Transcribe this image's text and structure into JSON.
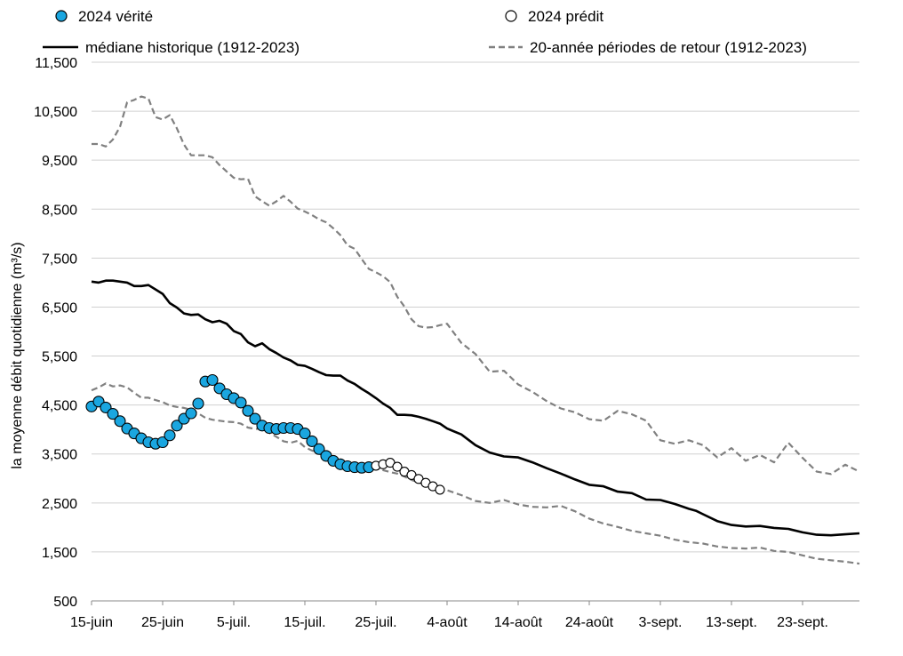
{
  "chart_data": {
    "type": "line",
    "title": "",
    "xlabel": "",
    "ylabel": "la moyenne débit quotidienne (m³/s)",
    "ylim": [
      500,
      11500
    ],
    "yticks": [
      500,
      1500,
      2500,
      3500,
      4500,
      5500,
      6500,
      7500,
      8500,
      9500,
      10500,
      11500
    ],
    "ytick_labels": [
      "500",
      "1,500",
      "2,500",
      "3,500",
      "4,500",
      "5,500",
      "6,500",
      "7,500",
      "8,500",
      "9,500",
      "10,500",
      "11,500"
    ],
    "xlim": [
      0,
      108
    ],
    "xticks": [
      {
        "day": 0,
        "label": "15-juin"
      },
      {
        "day": 10,
        "label": "25-juin"
      },
      {
        "day": 20,
        "label": "5-juil."
      },
      {
        "day": 30,
        "label": "15-juil."
      },
      {
        "day": 40,
        "label": "25-juil."
      },
      {
        "day": 50,
        "label": "4-août"
      },
      {
        "day": 60,
        "label": "14-août"
      },
      {
        "day": 70,
        "label": "24-août"
      },
      {
        "day": 80,
        "label": "3-sept."
      },
      {
        "day": 90,
        "label": "13-sept."
      },
      {
        "day": 100,
        "label": "23-sept."
      }
    ],
    "legend": {
      "actual": "2024 vérité",
      "predicted": "2024 prédit",
      "median": "médiane historique (1912-2023)",
      "return_period": "20-année périodes de retour (1912-2023)"
    },
    "series": [
      {
        "name": "2024 vérité",
        "style": "markers-filled",
        "color": "#1aa6e0",
        "x_start": 0,
        "values": [
          4470,
          4570,
          4450,
          4320,
          4170,
          4020,
          3920,
          3820,
          3740,
          3710,
          3740,
          3880,
          4080,
          4220,
          4330,
          4530,
          4980,
          5010,
          4840,
          4720,
          4640,
          4550,
          4380,
          4220,
          4080,
          4030,
          4010,
          4030,
          4030,
          4010,
          3920,
          3760,
          3600,
          3460,
          3360,
          3290,
          3250,
          3230,
          3220,
          3230
        ]
      },
      {
        "name": "2024 prédit",
        "style": "markers-open",
        "color": "#ffffff",
        "x_start": 40,
        "values": [
          3260,
          3290,
          3320,
          3240,
          3140,
          3070,
          2990,
          2910,
          2840,
          2770
        ]
      },
      {
        "name": "médiane historique (1912-2023)",
        "style": "solid",
        "color": "#000000",
        "x": [
          0,
          1,
          2,
          3,
          4,
          5,
          6,
          7,
          8,
          9,
          10,
          11,
          12,
          13,
          14,
          15,
          16,
          17,
          18,
          19,
          20,
          21,
          22,
          23,
          24,
          25,
          26,
          27,
          28,
          29,
          30,
          31,
          32,
          33,
          34,
          35,
          36,
          37,
          38,
          39,
          40,
          41,
          42,
          43,
          44,
          45,
          46,
          47,
          48,
          49,
          50,
          52,
          54,
          56,
          58,
          60,
          62,
          64,
          66,
          68,
          70,
          72,
          74,
          76,
          78,
          80,
          82,
          84,
          85,
          86,
          88,
          90,
          92,
          94,
          96,
          98,
          100,
          102,
          104,
          106,
          108
        ],
        "values": [
          7020,
          7000,
          7040,
          7040,
          7020,
          7000,
          6930,
          6930,
          6950,
          6860,
          6770,
          6580,
          6490,
          6370,
          6340,
          6350,
          6250,
          6190,
          6220,
          6160,
          6010,
          5950,
          5780,
          5700,
          5760,
          5640,
          5560,
          5470,
          5410,
          5320,
          5300,
          5240,
          5170,
          5110,
          5100,
          5100,
          5000,
          4930,
          4830,
          4740,
          4640,
          4530,
          4440,
          4300,
          4300,
          4290,
          4260,
          4220,
          4170,
          4120,
          4020,
          3900,
          3680,
          3530,
          3450,
          3430,
          3330,
          3210,
          3100,
          2980,
          2870,
          2840,
          2730,
          2700,
          2570,
          2560,
          2480,
          2380,
          2340,
          2270,
          2130,
          2050,
          2020,
          2030,
          1990,
          1970,
          1900,
          1850,
          1840,
          1860,
          1880
        ]
      },
      {
        "name": "20-année périodes de retour (1912-2023) haut",
        "style": "dashed",
        "color": "#808080",
        "x": [
          0,
          1,
          2,
          3,
          4,
          5,
          6,
          7,
          8,
          9,
          10,
          11,
          12,
          13,
          14,
          15,
          16,
          17,
          18,
          19,
          20,
          21,
          22,
          23,
          24,
          25,
          26,
          27,
          28,
          29,
          30,
          31,
          32,
          33,
          34,
          35,
          36,
          37,
          38,
          39,
          40,
          41,
          42,
          43,
          44,
          45,
          46,
          47,
          48,
          49,
          50,
          52,
          54,
          56,
          58,
          60,
          62,
          64,
          66,
          68,
          70,
          72,
          74,
          76,
          78,
          80,
          82,
          84,
          86,
          88,
          90,
          92,
          94,
          96,
          98,
          100,
          102,
          104,
          106,
          108
        ],
        "values": [
          9830,
          9830,
          9780,
          9920,
          10180,
          10680,
          10730,
          10800,
          10760,
          10380,
          10330,
          10420,
          10150,
          9820,
          9600,
          9600,
          9600,
          9560,
          9400,
          9270,
          9140,
          9110,
          9120,
          8760,
          8660,
          8570,
          8660,
          8770,
          8650,
          8510,
          8450,
          8380,
          8290,
          8230,
          8110,
          7970,
          7760,
          7690,
          7480,
          7280,
          7210,
          7130,
          7010,
          6710,
          6510,
          6250,
          6110,
          6080,
          6090,
          6130,
          6160,
          5770,
          5540,
          5180,
          5200,
          4920,
          4770,
          4580,
          4430,
          4350,
          4210,
          4180,
          4380,
          4310,
          4180,
          3780,
          3710,
          3780,
          3680,
          3430,
          3620,
          3360,
          3480,
          3330,
          3730,
          3420,
          3140,
          3090,
          3280,
          3140
        ]
      },
      {
        "name": "20-année périodes de retour (1912-2023) bas",
        "style": "dashed",
        "color": "#808080",
        "x": [
          0,
          1,
          2,
          3,
          4,
          5,
          6,
          7,
          8,
          9,
          10,
          11,
          12,
          13,
          14,
          15,
          16,
          17,
          18,
          19,
          20,
          21,
          22,
          23,
          24,
          25,
          26,
          27,
          28,
          29,
          30,
          31,
          32,
          33,
          34,
          35,
          36,
          37,
          38,
          39,
          40,
          41,
          42,
          43,
          44,
          45,
          46,
          47,
          48,
          49,
          50,
          52,
          54,
          56,
          58,
          60,
          62,
          64,
          66,
          68,
          70,
          72,
          74,
          76,
          78,
          80,
          82,
          84,
          86,
          88,
          90,
          92,
          94,
          96,
          98,
          100,
          102,
          104,
          106,
          108
        ],
        "values": [
          4800,
          4860,
          4940,
          4880,
          4900,
          4860,
          4750,
          4650,
          4650,
          4600,
          4560,
          4490,
          4460,
          4440,
          4400,
          4330,
          4240,
          4200,
          4180,
          4160,
          4150,
          4120,
          4040,
          4010,
          4020,
          3930,
          3850,
          3760,
          3730,
          3770,
          3640,
          3570,
          3510,
          3440,
          3380,
          3320,
          3280,
          3260,
          3250,
          3220,
          3200,
          3170,
          3130,
          3100,
          3040,
          2970,
          2920,
          2870,
          2820,
          2790,
          2760,
          2660,
          2540,
          2500,
          2560,
          2470,
          2420,
          2410,
          2440,
          2330,
          2180,
          2080,
          2010,
          1930,
          1880,
          1830,
          1750,
          1700,
          1670,
          1610,
          1580,
          1570,
          1590,
          1520,
          1500,
          1430,
          1360,
          1330,
          1300,
          1260
        ]
      }
    ]
  }
}
